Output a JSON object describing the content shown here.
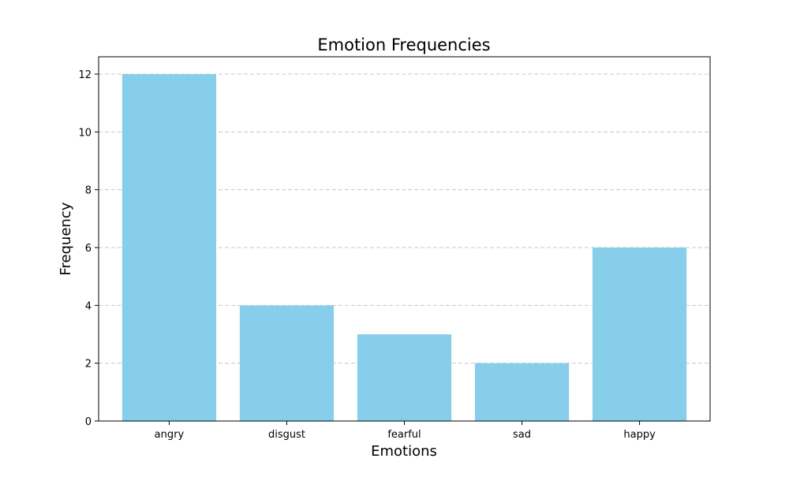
{
  "chart_data": {
    "type": "bar",
    "title": "Emotion Frequencies",
    "xlabel": "Emotions",
    "ylabel": "Frequency",
    "categories": [
      "angry",
      "disgust",
      "fearful",
      "sad",
      "happy"
    ],
    "values": [
      12,
      4,
      3,
      2,
      6
    ],
    "ylim": [
      0,
      12.6
    ],
    "yticks": [
      0,
      2,
      4,
      6,
      8,
      10,
      12
    ],
    "grid": "y-dashed",
    "legend": "none",
    "bar_color": "#87ceeb",
    "grid_color": "#c8c8c8"
  }
}
